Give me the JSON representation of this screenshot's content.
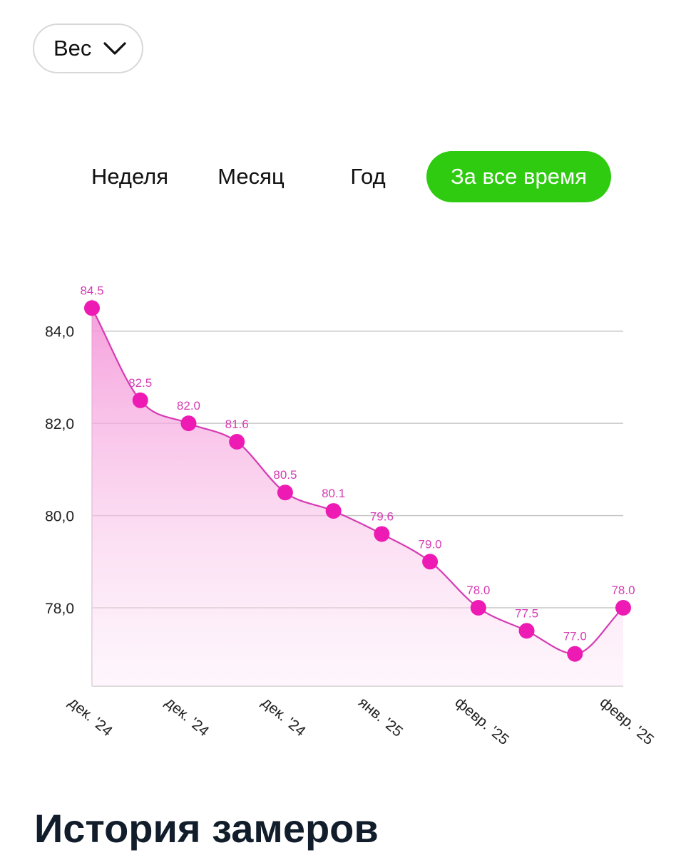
{
  "metric_selector": {
    "label": "Вес",
    "icon": "chevron-down-icon"
  },
  "tabs": [
    {
      "label": "Неделя",
      "active": false
    },
    {
      "label": "Месяц",
      "active": false
    },
    {
      "label": "Год",
      "active": false
    },
    {
      "label": "За все время",
      "active": true
    }
  ],
  "colors": {
    "accent": "#2ecb10",
    "series": "#ee1ab4",
    "label": "#d63bb3"
  },
  "chart_data": {
    "type": "area",
    "smooth": true,
    "grid": true,
    "title": "",
    "xlabel": "",
    "ylabel": "",
    "ylim": [
      76.3,
      85.0
    ],
    "yticks": [
      78.0,
      80.0,
      82.0,
      84.0
    ],
    "ytick_labels": [
      "78,0",
      "80,0",
      "82,0",
      "84,0"
    ],
    "xtick_labels": [
      "дек. '24",
      "дек. '24",
      "дек. '24",
      "янв. '25",
      "февр. '25",
      "февр. '25"
    ],
    "xtick_point_index": [
      0,
      2,
      4,
      6,
      8,
      11
    ],
    "series": [
      {
        "values": [
          84.5,
          82.5,
          82.0,
          81.6,
          80.5,
          80.1,
          79.6,
          79.0,
          78.0,
          77.5,
          77.0,
          78.0
        ],
        "labels": [
          "84.5",
          "82.5",
          "82.0",
          "81.6",
          "80.5",
          "80.1",
          "79.6",
          "79.0",
          "78.0",
          "77.5",
          "77.0",
          "78.0"
        ]
      }
    ]
  },
  "section": {
    "title": "История замеров"
  }
}
